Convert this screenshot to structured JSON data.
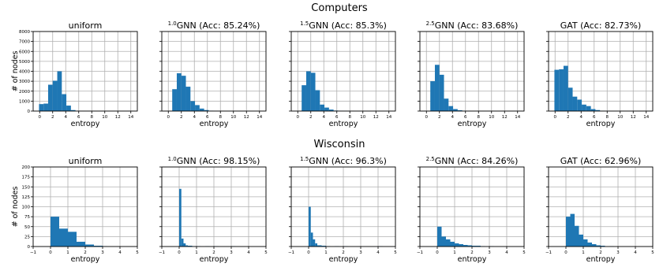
{
  "figure": {
    "rows": [
      {
        "title": "Computers",
        "ylabel": "# of nodes",
        "xlabel": "entropy",
        "xlim": [
          -1,
          15
        ],
        "ylim": [
          0,
          8000
        ],
        "xticks": [
          0,
          2,
          4,
          6,
          8,
          10,
          12,
          14
        ],
        "yticks": [
          0,
          1000,
          2000,
          3000,
          4000,
          5000,
          6000,
          7000,
          8000
        ],
        "bin_width": 0.7
      },
      {
        "title": "Wisconsin",
        "ylabel": "# of nodes",
        "xlabel": "entropy",
        "xlim": [
          -1,
          5
        ],
        "ylim": [
          0,
          200
        ],
        "xticks": [
          -1,
          0,
          1,
          2,
          3,
          4,
          5
        ],
        "yticks": [
          0,
          25,
          50,
          75,
          100,
          125,
          150,
          175,
          200
        ],
        "bin_width": 0.25
      }
    ]
  },
  "chart_data": [
    {
      "type": "bar",
      "row": 0,
      "title": "uniform",
      "x": [
        -0.1,
        0.6,
        1.3,
        2.0,
        2.7,
        3.4,
        4.1,
        4.8,
        5.5
      ],
      "values": [
        700,
        750,
        2650,
        3050,
        4000,
        1700,
        550,
        100,
        20
      ]
    },
    {
      "type": "bar",
      "row": 0,
      "title_sup": "1.0",
      "title": "GNN (Acc: 85.24%)",
      "x": [
        0.6,
        1.3,
        2.0,
        2.7,
        3.4,
        4.1,
        4.8,
        5.5,
        6.2,
        6.9
      ],
      "values": [
        2200,
        3800,
        3550,
        2450,
        1000,
        600,
        250,
        100,
        40,
        15
      ]
    },
    {
      "type": "bar",
      "row": 0,
      "title_sup": "1.5",
      "title": "GNN (Acc: 85.3%)",
      "x": [
        0.6,
        1.3,
        2.0,
        2.7,
        3.4,
        4.1,
        4.8,
        5.5,
        6.2,
        6.9
      ],
      "values": [
        2600,
        4000,
        3850,
        2100,
        650,
        350,
        150,
        50,
        20,
        10
      ]
    },
    {
      "type": "bar",
      "row": 0,
      "title_sup": "2.5",
      "title": "GNN (Acc: 83.68%)",
      "x": [
        0.6,
        1.3,
        2.0,
        2.7,
        3.4,
        4.1,
        4.8,
        5.5,
        6.2
      ],
      "values": [
        3000,
        4650,
        3650,
        1250,
        500,
        200,
        80,
        30,
        10
      ]
    },
    {
      "type": "bar",
      "row": 0,
      "title": "GAT (Acc: 82.73%)",
      "x": [
        -0.1,
        0.6,
        1.3,
        2.0,
        2.7,
        3.4,
        4.1,
        4.8,
        5.5,
        6.2,
        6.9
      ],
      "values": [
        4150,
        4200,
        4550,
        2350,
        1450,
        1150,
        650,
        500,
        200,
        100,
        30
      ]
    },
    {
      "type": "bar",
      "row": 1,
      "title": "uniform",
      "x": [
        0.0,
        0.25,
        0.5,
        0.75,
        1.0,
        1.25,
        1.5,
        1.75,
        2.0,
        2.25,
        2.5,
        2.75,
        3.0
      ],
      "values": [
        75,
        75,
        45,
        45,
        37,
        37,
        12,
        12,
        5,
        5,
        2,
        2,
        1
      ]
    },
    {
      "type": "bar",
      "row": 1,
      "title_sup": "1.0",
      "title": "GNN (Acc: 98.15%)",
      "x": [
        0.0,
        0.125,
        0.25,
        0.375,
        0.5,
        0.75,
        1.0,
        1.5,
        2.0,
        3.0
      ],
      "values": [
        145,
        20,
        8,
        3,
        2,
        1,
        1,
        1,
        1,
        1
      ]
    },
    {
      "type": "bar",
      "row": 1,
      "title_sup": "1.5",
      "title": "GNN (Acc: 96.3%)",
      "x": [
        0.0,
        0.125,
        0.25,
        0.375,
        0.5,
        0.75,
        1.0,
        1.5,
        2.0,
        4.0
      ],
      "values": [
        100,
        35,
        18,
        8,
        3,
        2,
        1,
        1,
        1,
        1
      ]
    },
    {
      "type": "bar",
      "row": 1,
      "title_sup": "2.5",
      "title": "GNN (Acc: 84.26%)",
      "x": [
        0.0,
        0.25,
        0.5,
        0.75,
        1.0,
        1.25,
        1.5,
        1.75,
        2.0,
        2.25,
        2.5,
        3.0
      ],
      "values": [
        50,
        25,
        18,
        12,
        8,
        6,
        4,
        3,
        2,
        2,
        1,
        1
      ]
    },
    {
      "type": "bar",
      "row": 1,
      "title": "GAT (Acc: 62.96%)",
      "x": [
        0.0,
        0.25,
        0.5,
        0.75,
        1.0,
        1.25,
        1.5,
        1.75,
        2.0,
        2.5
      ],
      "values": [
        75,
        82,
        52,
        30,
        18,
        10,
        6,
        3,
        2,
        1
      ]
    }
  ]
}
